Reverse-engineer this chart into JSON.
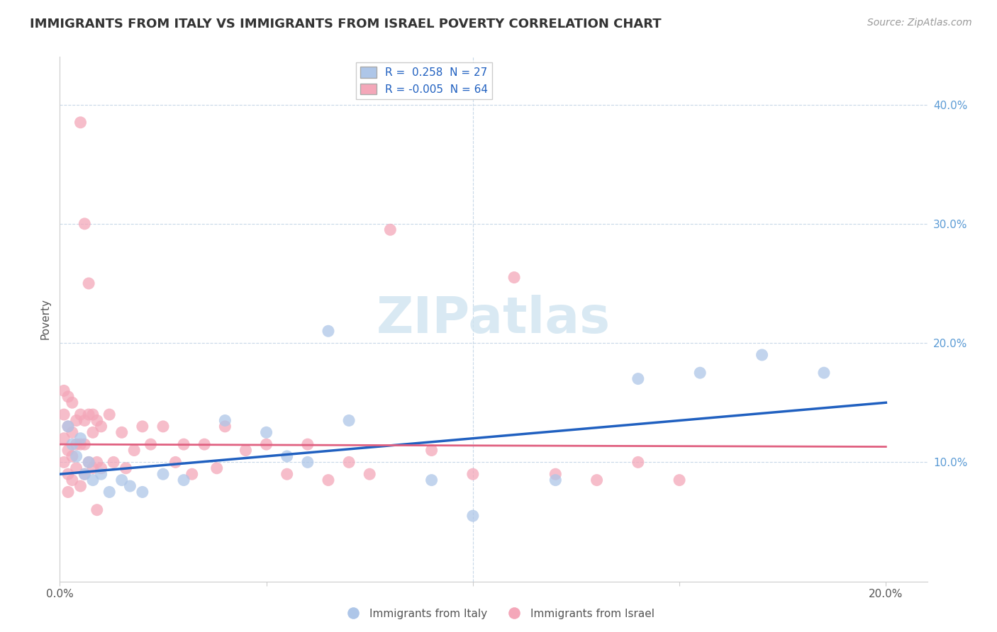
{
  "title": "IMMIGRANTS FROM ITALY VS IMMIGRANTS FROM ISRAEL POVERTY CORRELATION CHART",
  "source": "Source: ZipAtlas.com",
  "ylabel": "Poverty",
  "xlim": [
    0.0,
    0.21
  ],
  "ylim": [
    0.0,
    0.44
  ],
  "bg_color": "#ffffff",
  "italy_color": "#aec6e8",
  "israel_color": "#f4a7b9",
  "italy_line_color": "#2060c0",
  "israel_line_color": "#e06080",
  "grid_color": "#c8d8e8",
  "watermark_text": "ZIPatlas",
  "watermark_color": "#d0e4f0",
  "legend_italy_label": "R =  0.258  N = 27",
  "legend_israel_label": "R = -0.005  N = 64",
  "italy_line_x": [
    0.0,
    0.2
  ],
  "italy_line_y": [
    0.09,
    0.15
  ],
  "israel_line_x": [
    0.0,
    0.2
  ],
  "israel_line_y": [
    0.115,
    0.113
  ],
  "italy_x": [
    0.002,
    0.003,
    0.004,
    0.005,
    0.006,
    0.007,
    0.008,
    0.01,
    0.012,
    0.015,
    0.017,
    0.02,
    0.025,
    0.03,
    0.04,
    0.05,
    0.055,
    0.06,
    0.065,
    0.07,
    0.09,
    0.1,
    0.12,
    0.14,
    0.155,
    0.17,
    0.185
  ],
  "italy_y": [
    0.13,
    0.115,
    0.105,
    0.12,
    0.09,
    0.1,
    0.085,
    0.09,
    0.075,
    0.085,
    0.08,
    0.075,
    0.09,
    0.085,
    0.135,
    0.125,
    0.105,
    0.1,
    0.21,
    0.135,
    0.085,
    0.055,
    0.085,
    0.17,
    0.175,
    0.19,
    0.175
  ],
  "israel_x": [
    0.001,
    0.001,
    0.001,
    0.001,
    0.002,
    0.002,
    0.002,
    0.002,
    0.002,
    0.003,
    0.003,
    0.003,
    0.003,
    0.004,
    0.004,
    0.004,
    0.005,
    0.005,
    0.005,
    0.005,
    0.006,
    0.006,
    0.006,
    0.007,
    0.007,
    0.008,
    0.008,
    0.009,
    0.009,
    0.01,
    0.01,
    0.012,
    0.013,
    0.015,
    0.016,
    0.018,
    0.02,
    0.022,
    0.025,
    0.028,
    0.03,
    0.032,
    0.035,
    0.038,
    0.04,
    0.045,
    0.05,
    0.055,
    0.06,
    0.065,
    0.07,
    0.075,
    0.08,
    0.09,
    0.1,
    0.11,
    0.12,
    0.13,
    0.14,
    0.15,
    0.006,
    0.007,
    0.008,
    0.009
  ],
  "israel_y": [
    0.16,
    0.14,
    0.12,
    0.1,
    0.155,
    0.13,
    0.11,
    0.09,
    0.075,
    0.15,
    0.125,
    0.105,
    0.085,
    0.135,
    0.115,
    0.095,
    0.385,
    0.14,
    0.115,
    0.08,
    0.135,
    0.115,
    0.09,
    0.14,
    0.1,
    0.125,
    0.095,
    0.135,
    0.1,
    0.13,
    0.095,
    0.14,
    0.1,
    0.125,
    0.095,
    0.11,
    0.13,
    0.115,
    0.13,
    0.1,
    0.115,
    0.09,
    0.115,
    0.095,
    0.13,
    0.11,
    0.115,
    0.09,
    0.115,
    0.085,
    0.1,
    0.09,
    0.295,
    0.11,
    0.09,
    0.255,
    0.09,
    0.085,
    0.1,
    0.085,
    0.3,
    0.25,
    0.14,
    0.06
  ]
}
